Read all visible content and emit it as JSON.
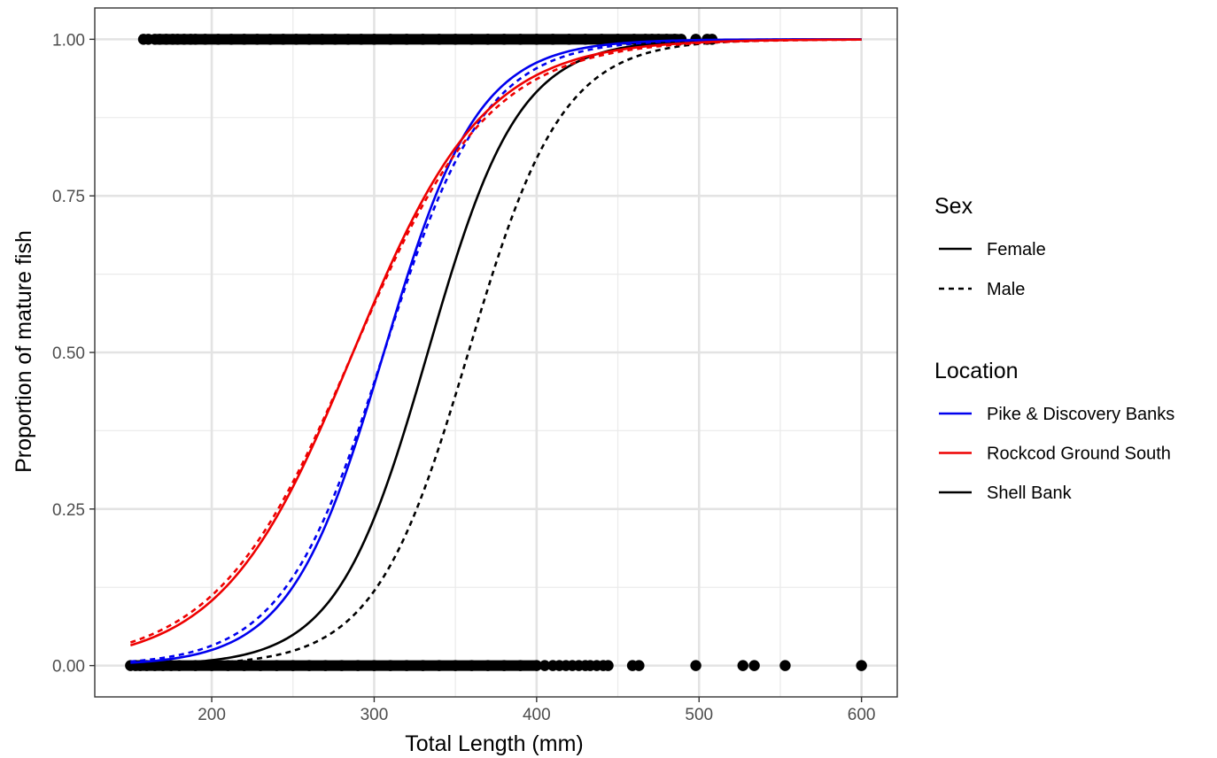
{
  "chart_data": {
    "type": "line",
    "xlabel": "Total Length (mm)",
    "ylabel": "Proportion of mature fish",
    "xlim": [
      128,
      622
    ],
    "ylim": [
      -0.05,
      1.05
    ],
    "x_ticks": [
      200,
      300,
      400,
      500,
      600
    ],
    "x_tick_labels": [
      "200",
      "300",
      "400",
      "500",
      "600"
    ],
    "y_ticks": [
      0,
      0.25,
      0.5,
      0.75,
      1
    ],
    "y_tick_labels": [
      "0.00",
      "0.25",
      "0.50",
      "0.75",
      "1.00"
    ],
    "grid": true,
    "x_range_fit": [
      150,
      600
    ],
    "legend_position": "right",
    "legend": {
      "sex": {
        "title": "Sex",
        "items": [
          {
            "label": "Female",
            "linetype": "solid"
          },
          {
            "label": "Male",
            "linetype": "dashed"
          }
        ]
      },
      "location": {
        "title": "Location",
        "items": [
          {
            "label": "Pike & Discovery Banks",
            "color": "#0000ee"
          },
          {
            "label": "Rockcod Ground South",
            "color": "#ee0000"
          },
          {
            "label": "Shell Bank",
            "color": "#000000"
          }
        ]
      }
    },
    "series": [
      {
        "location": "Shell Bank",
        "sex": "Female",
        "color": "#000000",
        "linetype": "solid",
        "l50": 333,
        "slope": 0.0357
      },
      {
        "location": "Shell Bank",
        "sex": "Male",
        "color": "#000000",
        "linetype": "dashed",
        "l50": 358,
        "slope": 0.0345
      },
      {
        "location": "Pike & Discovery Banks",
        "sex": "Male",
        "color": "#0000ee",
        "linetype": "dashed",
        "l50": 306,
        "slope": 0.0322
      },
      {
        "location": "Pike & Discovery Banks",
        "sex": "Female",
        "color": "#0000ee",
        "linetype": "solid",
        "l50": 306,
        "slope": 0.0346
      },
      {
        "location": "Rockcod Ground South",
        "sex": "Male",
        "color": "#ee0000",
        "linetype": "dashed",
        "l50": 287,
        "slope": 0.0238
      },
      {
        "location": "Rockcod Ground South",
        "sex": "Female",
        "color": "#ee0000",
        "linetype": "solid",
        "l50": 287,
        "slope": 0.0248
      }
    ],
    "points_mature": {
      "y": 1,
      "dense_range": [
        163,
        490
      ],
      "x": [
        158,
        161,
        165,
        168,
        172,
        176,
        179,
        183,
        187,
        190,
        196,
        204,
        212,
        220,
        228,
        236,
        244,
        252,
        260,
        268,
        276,
        284,
        292,
        300,
        310,
        320,
        330,
        340,
        350,
        360,
        370,
        380,
        390,
        400,
        410,
        420,
        430,
        440,
        450,
        460,
        467,
        471,
        475,
        480,
        485,
        489,
        498,
        505,
        508
      ]
    },
    "points_immature": {
      "y": 0,
      "dense_range": [
        150,
        402
      ],
      "x": [
        150,
        153,
        156,
        160,
        165,
        170,
        175,
        180,
        190,
        200,
        210,
        220,
        230,
        240,
        250,
        260,
        270,
        280,
        290,
        300,
        310,
        320,
        330,
        340,
        350,
        360,
        370,
        380,
        390,
        400,
        405,
        410,
        414,
        418,
        422,
        426,
        430,
        433,
        437,
        441,
        444,
        459,
        463,
        498,
        527,
        534,
        553,
        600
      ]
    }
  }
}
